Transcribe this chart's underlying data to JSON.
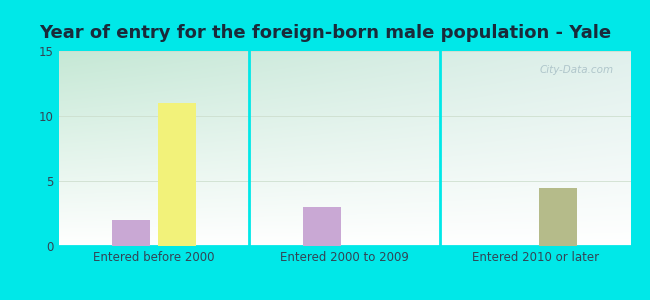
{
  "title": "Year of entry for the foreign-born male population - Yale",
  "categories": [
    "Entered before 2000",
    "Entered 2000 to 2009",
    "Entered 2010 or later"
  ],
  "series": {
    "Europe": [
      2,
      3,
      0
    ],
    "Asia": [
      0,
      0,
      4.5
    ],
    "Other": [
      11,
      0,
      0
    ]
  },
  "colors": {
    "Europe": "#c9a8d4",
    "Asia": "#b5bb8a",
    "Other": "#f2f27a"
  },
  "legend_colors": {
    "Europe": "#c9a8d4",
    "Asia": "#c8b97a",
    "Other": "#f2f27a"
  },
  "ylim": [
    0,
    15
  ],
  "yticks": [
    0,
    5,
    10,
    15
  ],
  "bar_width": 0.2,
  "background_outer": "#00e8e8",
  "title_fontsize": 13,
  "tick_fontsize": 8.5,
  "legend_fontsize": 9,
  "title_color": "#1a2a3a",
  "watermark": "City-Data.com"
}
